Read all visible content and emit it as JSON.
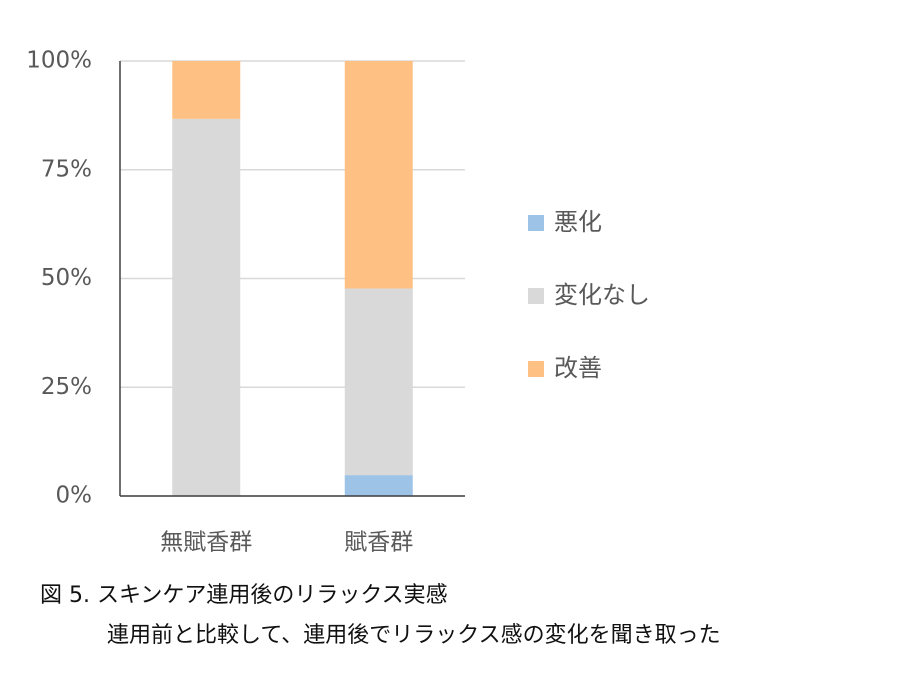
{
  "chart_data": {
    "type": "stacked_bar",
    "title": "図 5. スキンケア連用後のリラックス実感",
    "subtitle": "連用前と比較して、連用後でリラックス感の変化を聞き取った",
    "categories": [
      "無賦香群",
      "賦香群"
    ],
    "series": [
      {
        "name": "悪化",
        "color": "#9dc3e6",
        "values": [
          0,
          4.8
        ]
      },
      {
        "name": "変化なし",
        "color": "#d9d9d9",
        "values": [
          86.7,
          42.9
        ]
      },
      {
        "name": "改善",
        "color": "#ffc083",
        "values": [
          13.3,
          52.3
        ]
      }
    ],
    "ylim": [
      0,
      100
    ],
    "yticks": [
      {
        "value": 0,
        "label": "0%"
      },
      {
        "value": 25,
        "label": "25%"
      },
      {
        "value": 50,
        "label": "50%"
      },
      {
        "value": 75,
        "label": "75%"
      },
      {
        "value": 100,
        "label": "100%"
      }
    ],
    "grid": true,
    "legend": "right"
  }
}
